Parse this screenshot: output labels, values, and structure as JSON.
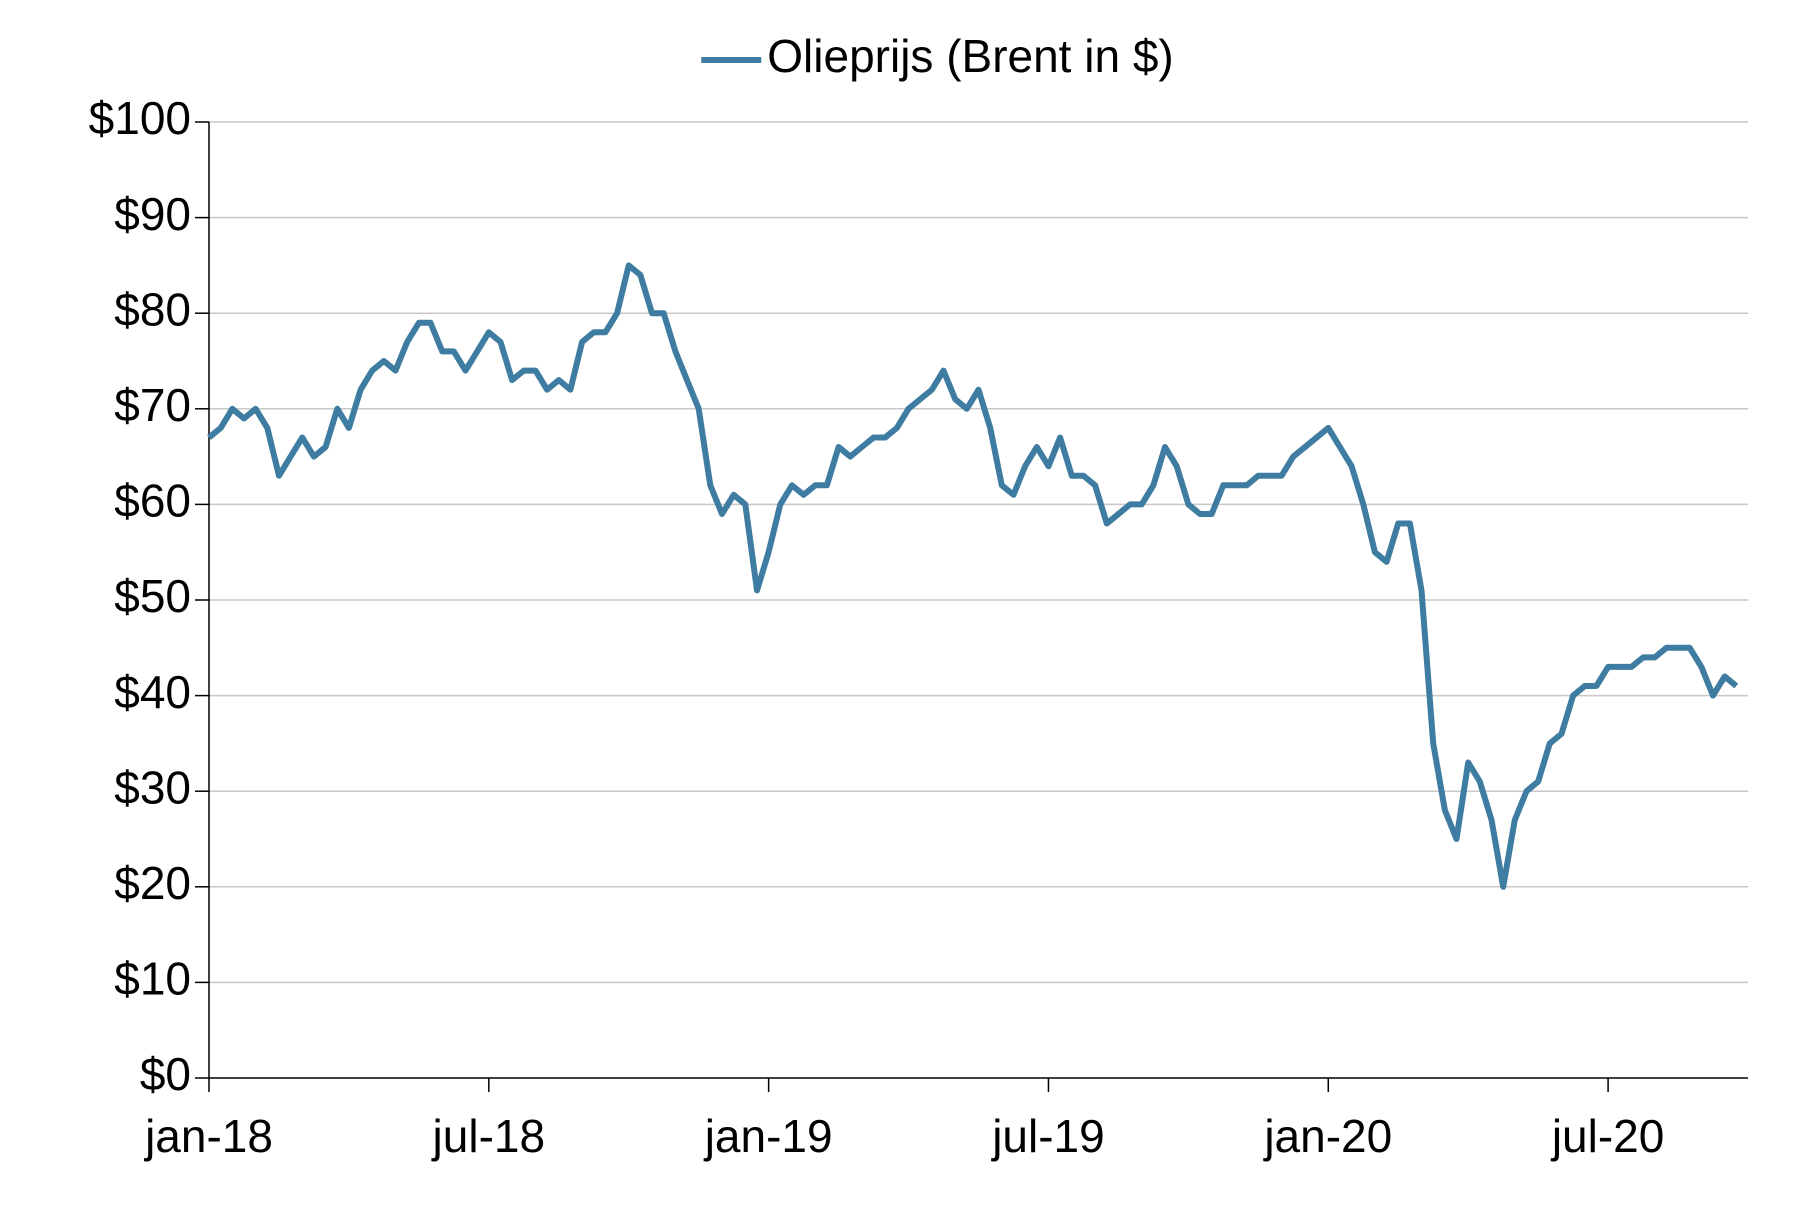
{
  "chart_data": {
    "type": "line",
    "categories": [
      "jan-18",
      null,
      null,
      null,
      null,
      null,
      null,
      null,
      null,
      null,
      null,
      null,
      null,
      null,
      null,
      null,
      null,
      null,
      null,
      null,
      null,
      null,
      null,
      null,
      "jul-18",
      null,
      null,
      null,
      null,
      null,
      null,
      null,
      null,
      null,
      null,
      null,
      null,
      null,
      null,
      null,
      null,
      null,
      null,
      null,
      null,
      null,
      null,
      null,
      "jan-19",
      null,
      null,
      null,
      null,
      null,
      null,
      null,
      null,
      null,
      null,
      null,
      null,
      null,
      null,
      null,
      null,
      null,
      null,
      null,
      null,
      null,
      null,
      null,
      "jul-19",
      null,
      null,
      null,
      null,
      null,
      null,
      null,
      null,
      null,
      null,
      null,
      null,
      null,
      null,
      null,
      null,
      null,
      null,
      null,
      null,
      null,
      null,
      null,
      "jan-20",
      null,
      null,
      null,
      null,
      null,
      null,
      null,
      null,
      null,
      null,
      null,
      null,
      null,
      null,
      null,
      null,
      null,
      null,
      null,
      null,
      null,
      null,
      null,
      "jul-20",
      null,
      null,
      null,
      null,
      null,
      null,
      null,
      null,
      null,
      null,
      null
    ],
    "series": [
      {
        "name": "Olieprijs (Brent in $)",
        "color": "#3f7ca1",
        "values": [
          67,
          68,
          70,
          69,
          70,
          68,
          63,
          65,
          67,
          65,
          66,
          70,
          68,
          72,
          74,
          75,
          74,
          77,
          79,
          79,
          76,
          76,
          74,
          76,
          78,
          77,
          73,
          74,
          74,
          72,
          73,
          72,
          77,
          78,
          78,
          80,
          85,
          84,
          80,
          80,
          76,
          73,
          70,
          62,
          59,
          61,
          60,
          51,
          55,
          60,
          62,
          61,
          62,
          62,
          66,
          65,
          66,
          67,
          67,
          68,
          70,
          71,
          72,
          74,
          71,
          70,
          72,
          68,
          62,
          61,
          64,
          66,
          64,
          67,
          63,
          63,
          62,
          58,
          59,
          60,
          60,
          62,
          66,
          64,
          60,
          59,
          59,
          62,
          62,
          62,
          63,
          63,
          63,
          65,
          66,
          67,
          68,
          66,
          64,
          60,
          55,
          54,
          58,
          58,
          51,
          35,
          28,
          25,
          33,
          31,
          27,
          20,
          27,
          30,
          31,
          35,
          36,
          40,
          41,
          41,
          43,
          43,
          43,
          44,
          44,
          45,
          45,
          45,
          43,
          40,
          42,
          41
        ]
      }
    ],
    "ylim": [
      0,
      100
    ],
    "yticks": [
      {
        "value": 0,
        "label": "$0"
      },
      {
        "value": 10,
        "label": "$10"
      },
      {
        "value": 20,
        "label": "$20"
      },
      {
        "value": 30,
        "label": "$30"
      },
      {
        "value": 40,
        "label": "$40"
      },
      {
        "value": 50,
        "label": "$50"
      },
      {
        "value": 60,
        "label": "$60"
      },
      {
        "value": 70,
        "label": "$70"
      },
      {
        "value": 80,
        "label": "$80"
      },
      {
        "value": 90,
        "label": "$90"
      },
      {
        "value": 100,
        "label": "$100"
      }
    ],
    "grid": true,
    "legend": "top"
  }
}
